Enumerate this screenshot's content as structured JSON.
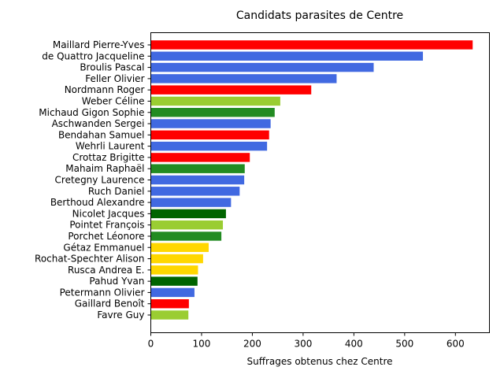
{
  "chart_data": {
    "type": "bar",
    "orientation": "horizontal",
    "title": "Candidats parasites de Centre",
    "xlabel": "Suffrages obtenus chez Centre",
    "ylabel": "",
    "xlim": [
      0,
      667
    ],
    "xticks": [
      0,
      100,
      200,
      300,
      400,
      500,
      600
    ],
    "grid": false,
    "legend": "none",
    "categories": [
      "Maillard Pierre-Yves",
      "de Quattro Jacqueline",
      "Broulis Pascal",
      "Feller Olivier",
      "Nordmann Roger",
      "Weber Céline",
      "Michaud Gigon Sophie",
      "Aschwanden Sergei",
      "Bendahan Samuel",
      "Wehrli Laurent",
      "Crottaz Brigitte",
      "Mahaim Raphaël",
      "Cretegny Laurence",
      "Ruch Daniel",
      "Berthoud Alexandre",
      "Nicolet Jacques",
      "Pointet François",
      "Porchet Léonore",
      "Gétaz Emmanuel",
      "Rochat-Spechter Alison",
      "Rusca Andrea E.",
      "Pahud Yvan",
      "Petermann Olivier",
      "Gaillard Benoît",
      "Favre Guy"
    ],
    "values": [
      634,
      536,
      439,
      366,
      316,
      255,
      244,
      236,
      233,
      229,
      195,
      185,
      184,
      175,
      158,
      148,
      142,
      139,
      114,
      103,
      93,
      92,
      86,
      75,
      74
    ],
    "colors": [
      "#ff0000",
      "#4169e1",
      "#4169e1",
      "#4169e1",
      "#ff0000",
      "#9acd32",
      "#228b22",
      "#4169e1",
      "#ff0000",
      "#4169e1",
      "#ff0000",
      "#228b22",
      "#4169e1",
      "#4169e1",
      "#4169e1",
      "#006400",
      "#9acd32",
      "#228b22",
      "#ffd700",
      "#ffd700",
      "#ffd700",
      "#006400",
      "#4169e1",
      "#ff0000",
      "#9acd32"
    ]
  }
}
